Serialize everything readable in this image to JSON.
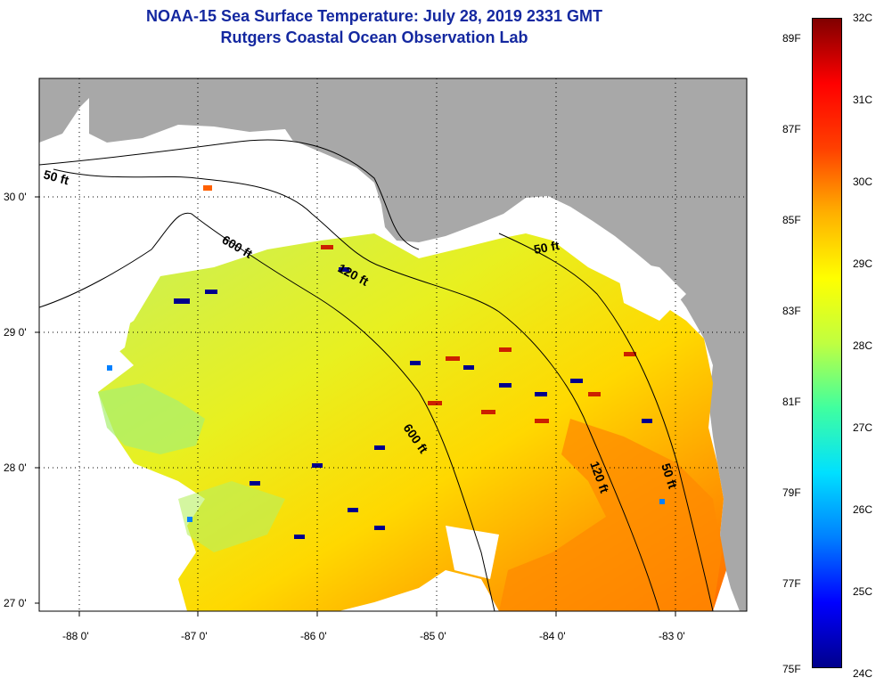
{
  "header": {
    "title": "NOAA-15 Sea Surface Temperature:  July 28, 2019 2331 GMT",
    "subtitle": "Rutgers Coastal Ocean Observation Lab"
  },
  "map": {
    "lat_labels": [
      "30 0'",
      "29 0'",
      "28 0'",
      "27 0'"
    ],
    "lon_labels": [
      "-88 0'",
      "-87 0'",
      "-86 0'",
      "-85 0'",
      "-84 0'",
      "-83 0'"
    ],
    "contour_labels": [
      "50 ft",
      "600 ft",
      "120 ft",
      "50 ft",
      "600 ft",
      "120 ft",
      "50 ft"
    ],
    "colors": {
      "land": "#a8a8a8",
      "no_data": "#ffffff"
    }
  },
  "colorbar": {
    "celsius_labels": [
      "32C",
      "31C",
      "30C",
      "29C",
      "28C",
      "27C",
      "26C",
      "25C",
      "24C"
    ],
    "fahrenheit_labels": [
      "89F",
      "87F",
      "85F",
      "83F",
      "81F",
      "79F",
      "77F",
      "75F"
    ],
    "colors": [
      "#00008c",
      "#0000ff",
      "#0080ff",
      "#00e0ff",
      "#40ff9f",
      "#c0ff40",
      "#ffff00",
      "#ffb000",
      "#ff4000",
      "#ff0000",
      "#800000"
    ]
  }
}
